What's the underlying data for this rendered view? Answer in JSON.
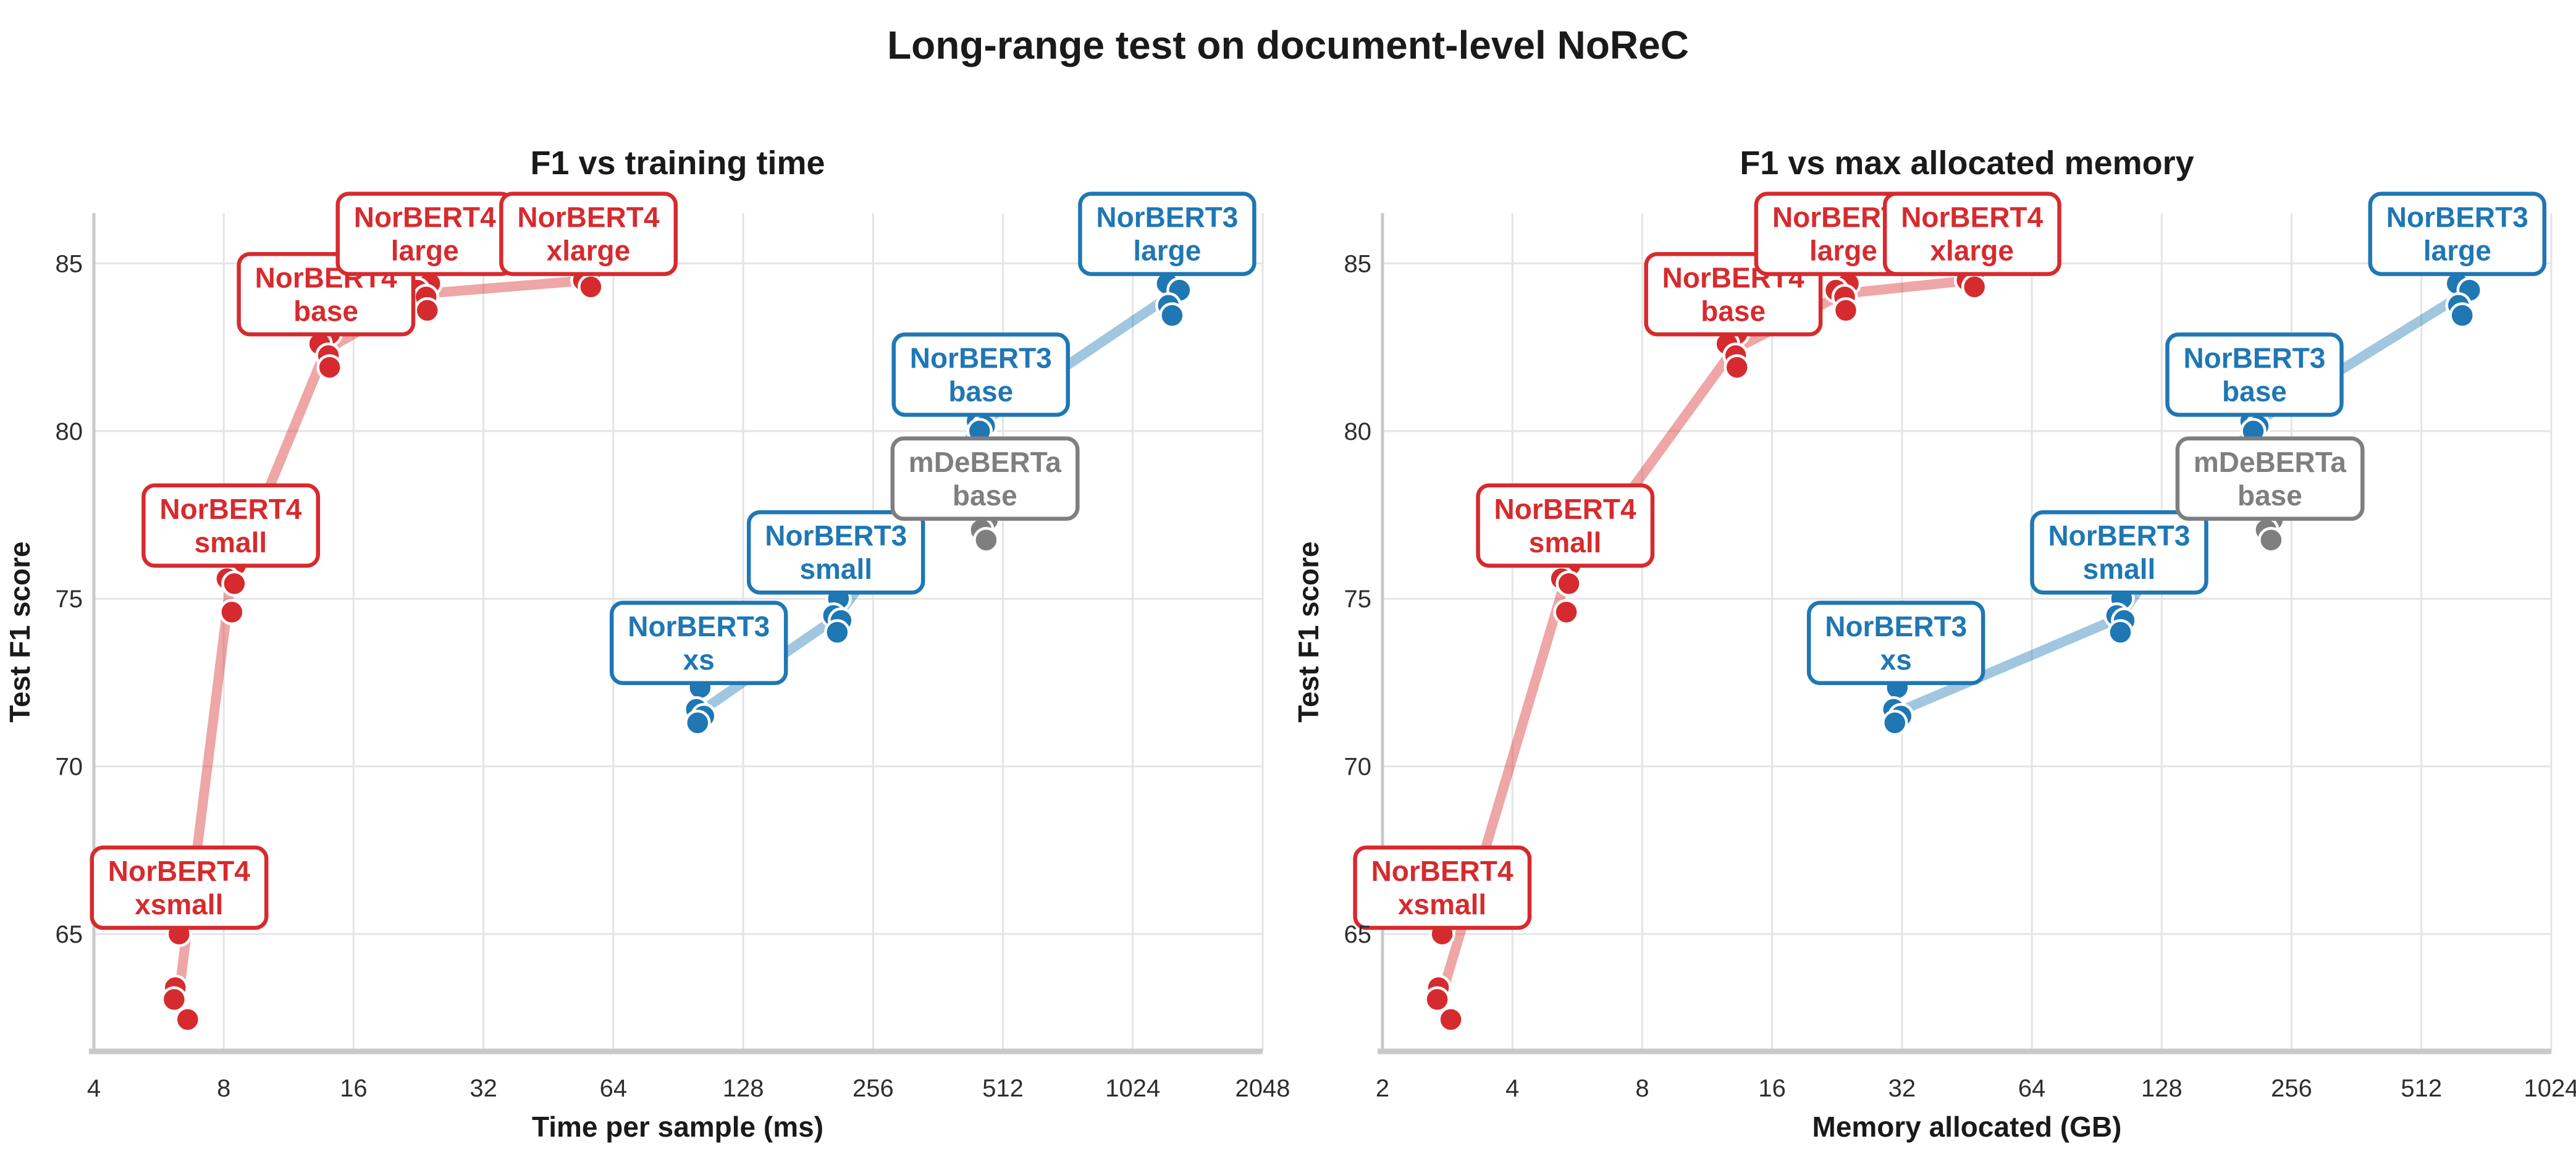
{
  "figure": {
    "title": "Long-range test on document-level NoReC",
    "background": "#ffffff"
  },
  "colors": {
    "norbert4": "#d62b2e",
    "norbert3": "#1f77b4",
    "mdeberta": "#7f7f7f",
    "grid": "#e4e4e4",
    "spine": "#c9c9c9",
    "text": "#1a1a1a",
    "tick_text": "#2e2e2e",
    "dot_edge": "#ffffff",
    "label_box_fill": "#ffffff"
  },
  "chart_data": [
    {
      "type": "scatter",
      "title": "F1 vs training time",
      "xlabel": "Time per sample (ms)",
      "ylabel": "Test F1 score",
      "xscale": "log2",
      "xlim": [
        4,
        2048
      ],
      "xticks": [
        4,
        8,
        16,
        32,
        64,
        128,
        256,
        512,
        1024,
        2048
      ],
      "ylim": [
        61.5,
        86.5
      ],
      "yticks": [
        65,
        70,
        75,
        80,
        85
      ],
      "grid": true,
      "legend": "none",
      "x_key": "time_ms"
    },
    {
      "type": "scatter",
      "title": "F1 vs max allocated memory",
      "xlabel": "Memory allocated (GB)",
      "ylabel": "Test F1 score",
      "xscale": "log2",
      "xlim": [
        2,
        1024
      ],
      "xticks": [
        2,
        4,
        8,
        16,
        32,
        64,
        128,
        256,
        512,
        1024
      ],
      "ylim": [
        61.5,
        86.5
      ],
      "yticks": [
        65,
        70,
        75,
        80,
        85
      ],
      "grid": true,
      "legend": "none",
      "x_key": "mem_gb"
    }
  ],
  "models": [
    {
      "id": "norbert4-xsmall",
      "name": "NorBERT4",
      "size": "xsmall",
      "family": "NorBERT4",
      "color": "#d62b2e",
      "time_ms": 6.3,
      "mem_gb": 2.75,
      "f1_scores": [
        65.0,
        63.4,
        63.05,
        62.45
      ],
      "dx": [
        0,
        -6,
        -8,
        14
      ],
      "label_f1": 66.4
    },
    {
      "id": "norbert4-small",
      "name": "NorBERT4",
      "size": "small",
      "family": "NorBERT4",
      "color": "#d62b2e",
      "time_ms": 8.3,
      "mem_gb": 5.3,
      "f1_scores": [
        76.0,
        75.6,
        75.45,
        74.6
      ],
      "dx": [
        8,
        -6,
        6,
        2
      ],
      "label_f1": 77.2
    },
    {
      "id": "norbert4-base",
      "name": "NorBERT4",
      "size": "base",
      "family": "NorBERT4",
      "color": "#d62b2e",
      "time_ms": 13.8,
      "mem_gb": 13.0,
      "f1_scores": [
        82.9,
        82.6,
        82.25,
        81.9
      ],
      "dx": [
        6,
        -10,
        4,
        6
      ],
      "label_f1": 84.1
    },
    {
      "id": "norbert4-large",
      "name": "NorBERT4",
      "size": "large",
      "family": "NorBERT4",
      "color": "#d62b2e",
      "time_ms": 23.4,
      "mem_gb": 23.4,
      "f1_scores": [
        84.4,
        84.2,
        84.0,
        83.6
      ],
      "dx": [
        8,
        -12,
        2,
        4
      ],
      "label_f1": 85.9
    },
    {
      "id": "norbert4-xlarge",
      "name": "NorBERT4",
      "size": "xlarge",
      "family": "NorBERT4",
      "color": "#d62b2e",
      "time_ms": 56.0,
      "mem_gb": 46.5,
      "f1_scores": [
        84.65,
        84.5,
        84.3
      ],
      "dx": [
        2,
        -8,
        4
      ],
      "label_f1": 85.9
    },
    {
      "id": "norbert3-xs",
      "name": "NorBERT3",
      "size": "xs",
      "family": "NorBERT3",
      "color": "#1f77b4",
      "time_ms": 101,
      "mem_gb": 31,
      "f1_scores": [
        72.35,
        71.7,
        71.5,
        71.3
      ],
      "dx": [
        2,
        -4,
        8,
        -2
      ],
      "label_f1": 73.7
    },
    {
      "id": "norbert3-small",
      "name": "NorBERT3",
      "size": "small",
      "family": "NorBERT3",
      "color": "#1f77b4",
      "time_ms": 210,
      "mem_gb": 102,
      "f1_scores": [
        75.0,
        74.5,
        74.35,
        74.0
      ],
      "dx": [
        4,
        -4,
        8,
        2
      ],
      "label_f1": 76.4
    },
    {
      "id": "norbert3-base",
      "name": "NorBERT3",
      "size": "base",
      "family": "NorBERT3",
      "color": "#1f77b4",
      "time_ms": 455,
      "mem_gb": 210,
      "f1_scores": [
        80.55,
        80.3,
        80.15,
        80.0
      ],
      "dx": [
        2,
        -6,
        6,
        -2
      ],
      "label_f1": 81.7
    },
    {
      "id": "mdeberta-base",
      "name": "mDeBERTa",
      "size": "base",
      "family": "mDeBERTa",
      "color": "#7f7f7f",
      "time_ms": 465,
      "mem_gb": 228,
      "f1_scores": [
        77.35,
        77.05,
        76.75
      ],
      "dx": [
        4,
        -6,
        2
      ],
      "label_f1": 78.6
    },
    {
      "id": "norbert3-large",
      "name": "NorBERT3",
      "size": "large",
      "family": "NorBERT3",
      "color": "#1f77b4",
      "time_ms": 1230,
      "mem_gb": 620,
      "f1_scores": [
        84.4,
        84.2,
        83.75,
        83.45
      ],
      "dx": [
        0,
        20,
        2,
        8
      ],
      "label_f1": 85.9
    }
  ],
  "families": [
    {
      "name": "NorBERT4",
      "color": "#d62b2e",
      "member_ids": [
        "norbert4-xsmall",
        "norbert4-small",
        "norbert4-base",
        "norbert4-large",
        "norbert4-xlarge"
      ]
    },
    {
      "name": "NorBERT3",
      "color": "#1f77b4",
      "member_ids": [
        "norbert3-xs",
        "norbert3-small",
        "norbert3-base",
        "norbert3-large"
      ]
    }
  ]
}
